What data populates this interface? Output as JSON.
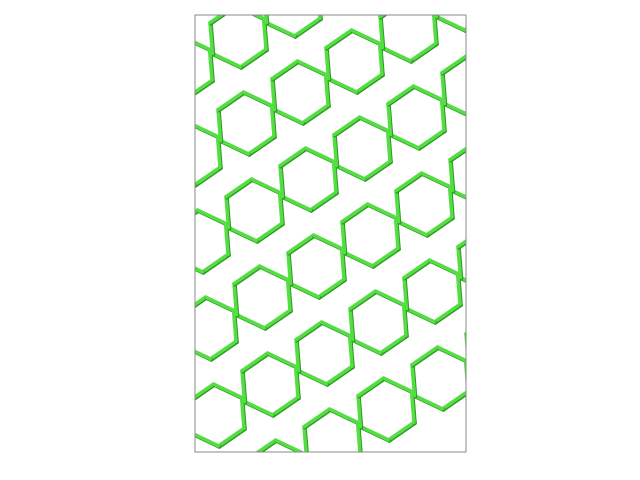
{
  "figure": {
    "kind": "hexagonal lattice",
    "frame_color": "#888888",
    "background": "#ffffff",
    "edge_color": "#55dd44",
    "edge_shadow": "#2a9a20"
  }
}
